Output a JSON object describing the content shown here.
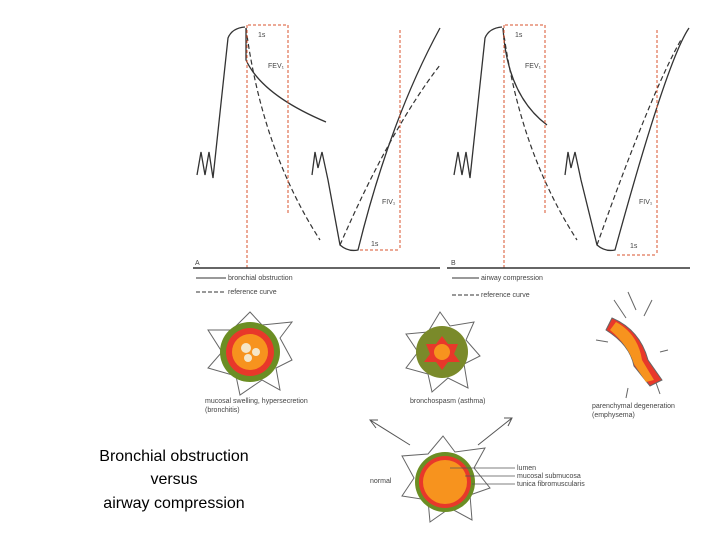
{
  "panels": [
    {
      "label": "A",
      "time_top": "1s",
      "fev": "FEV₁",
      "fiv": "FIV₁",
      "time_bottom": "1s",
      "legend": [
        "bronchial obstruction",
        "reference curve"
      ]
    },
    {
      "label": "B",
      "time_top": "1s",
      "fev": "FEV₁",
      "fiv": "FIV₁",
      "time_bottom": "1s",
      "legend": [
        "airway compression",
        "reference curve"
      ]
    }
  ],
  "diagrams": [
    {
      "label": "mucosal swelling, hypersecretion",
      "sublabel": "(bronchitis)"
    },
    {
      "label": "bronchospasm (asthma)"
    },
    {
      "label": "parenchymal degeneration",
      "sublabel": "(emphysema)"
    }
  ],
  "normal": {
    "label": "normal",
    "layers": [
      "lumen",
      "mucosal submucosa",
      "tunica fibromuscularis"
    ]
  },
  "caption": [
    "Bronchial obstruction",
    "versus",
    "airway compression"
  ]
}
